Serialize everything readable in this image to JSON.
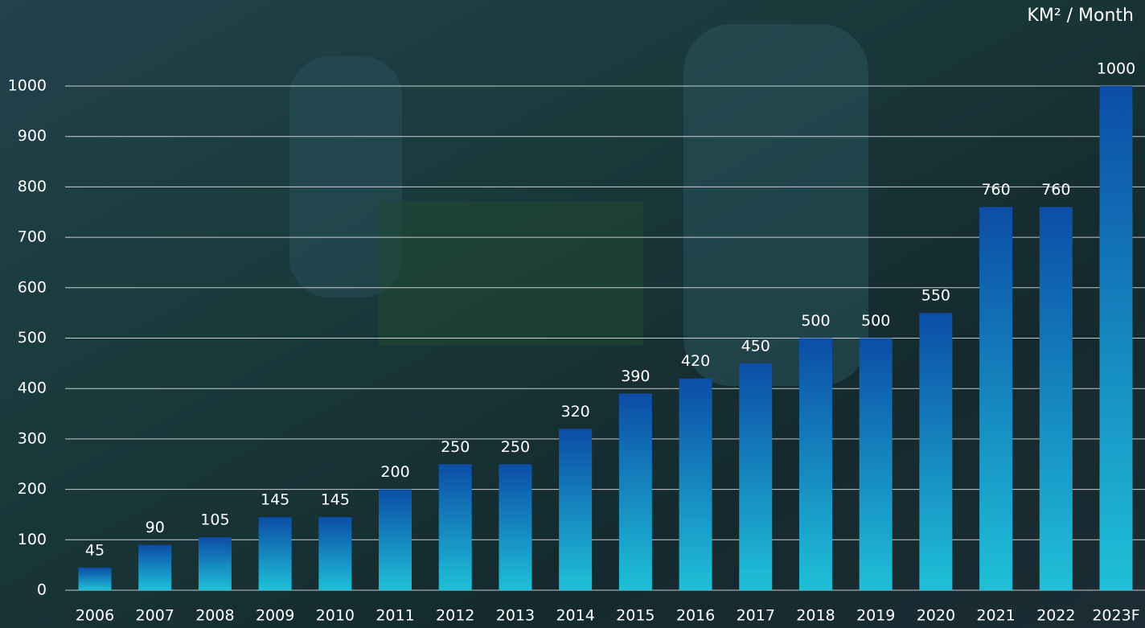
{
  "chart_data": {
    "type": "bar",
    "y_label": "KM² / Month",
    "categories": [
      "2006",
      "2007",
      "2008",
      "2009",
      "2010",
      "2011",
      "2012",
      "2013",
      "2014",
      "2015",
      "2016",
      "2017",
      "2018",
      "2019",
      "2020",
      "2021",
      "2022",
      "2023F"
    ],
    "values": [
      45,
      90,
      105,
      145,
      145,
      200,
      250,
      250,
      320,
      390,
      420,
      450,
      500,
      500,
      550,
      760,
      760,
      1000
    ],
    "gradient": [
      "#0c4da6",
      "#1fc0d8"
    ],
    "ylim": [
      0,
      1000
    ],
    "yticks": [
      0,
      100,
      200,
      300,
      400,
      500,
      600,
      700,
      800,
      900,
      1000
    ],
    "grid": true
  }
}
